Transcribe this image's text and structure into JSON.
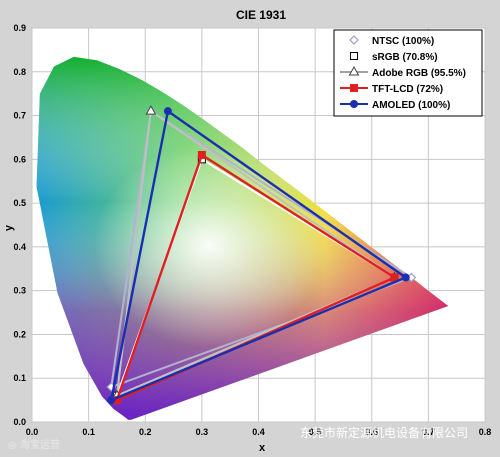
{
  "chart_data": {
    "type": "line",
    "title": "CIE 1931",
    "xlabel": "x",
    "ylabel": "y",
    "xlim": [
      0.0,
      0.8
    ],
    "ylim": [
      0.0,
      0.9
    ],
    "x_ticks": [
      "0.0",
      "0.1",
      "0.2",
      "0.3",
      "0.4",
      "0.5",
      "0.6",
      "0.7",
      "0.8"
    ],
    "y_ticks": [
      "0.0",
      "0.1",
      "0.2",
      "0.3",
      "0.4",
      "0.5",
      "0.6",
      "0.7",
      "0.8",
      "0.9"
    ],
    "grid": true,
    "legend_position": "top-right",
    "series": [
      {
        "name": "NTSC (100%)",
        "color": "#9aa0c8",
        "marker": "diamond",
        "points": [
          [
            0.67,
            0.33
          ],
          [
            0.21,
            0.71
          ],
          [
            0.14,
            0.08
          ]
        ]
      },
      {
        "name": "sRGB (70.8%)",
        "color": "#ffffff",
        "marker": "square",
        "points": [
          [
            0.64,
            0.33
          ],
          [
            0.3,
            0.6
          ],
          [
            0.15,
            0.06
          ]
        ]
      },
      {
        "name": "Adobe RGB (95.5%)",
        "color": "#c8c8c8",
        "marker": "triangle",
        "points": [
          [
            0.64,
            0.33
          ],
          [
            0.21,
            0.71
          ],
          [
            0.15,
            0.06
          ]
        ]
      },
      {
        "name": "TFT-LCD (72%)",
        "color": "#e02020",
        "marker": "square-filled",
        "points": [
          [
            0.64,
            0.33
          ],
          [
            0.3,
            0.61
          ],
          [
            0.15,
            0.05
          ]
        ]
      },
      {
        "name": "AMOLED (100%)",
        "color": "#1a2fb0",
        "marker": "circle",
        "points": [
          [
            0.66,
            0.33
          ],
          [
            0.24,
            0.71
          ],
          [
            0.14,
            0.05
          ]
        ]
      }
    ],
    "locus": [
      [
        0.175,
        0.005
      ],
      [
        0.17,
        0.005
      ],
      [
        0.16,
        0.015
      ],
      [
        0.144,
        0.03
      ],
      [
        0.124,
        0.058
      ],
      [
        0.091,
        0.133
      ],
      [
        0.045,
        0.295
      ],
      [
        0.008,
        0.538
      ],
      [
        0.014,
        0.75
      ],
      [
        0.039,
        0.812
      ],
      [
        0.074,
        0.834
      ],
      [
        0.115,
        0.826
      ],
      [
        0.155,
        0.806
      ],
      [
        0.193,
        0.782
      ],
      [
        0.23,
        0.754
      ],
      [
        0.266,
        0.724
      ],
      [
        0.302,
        0.692
      ],
      [
        0.337,
        0.659
      ],
      [
        0.373,
        0.625
      ],
      [
        0.408,
        0.589
      ],
      [
        0.444,
        0.554
      ],
      [
        0.479,
        0.52
      ],
      [
        0.512,
        0.487
      ],
      [
        0.547,
        0.452
      ],
      [
        0.575,
        0.424
      ],
      [
        0.602,
        0.397
      ],
      [
        0.627,
        0.372
      ],
      [
        0.648,
        0.351
      ],
      [
        0.666,
        0.334
      ],
      [
        0.68,
        0.32
      ],
      [
        0.692,
        0.308
      ],
      [
        0.735,
        0.265
      ]
    ]
  },
  "watermark": {
    "text": "东莞市新定源机电设备有限公司",
    "left_text": "◎ 淘宝运营"
  }
}
